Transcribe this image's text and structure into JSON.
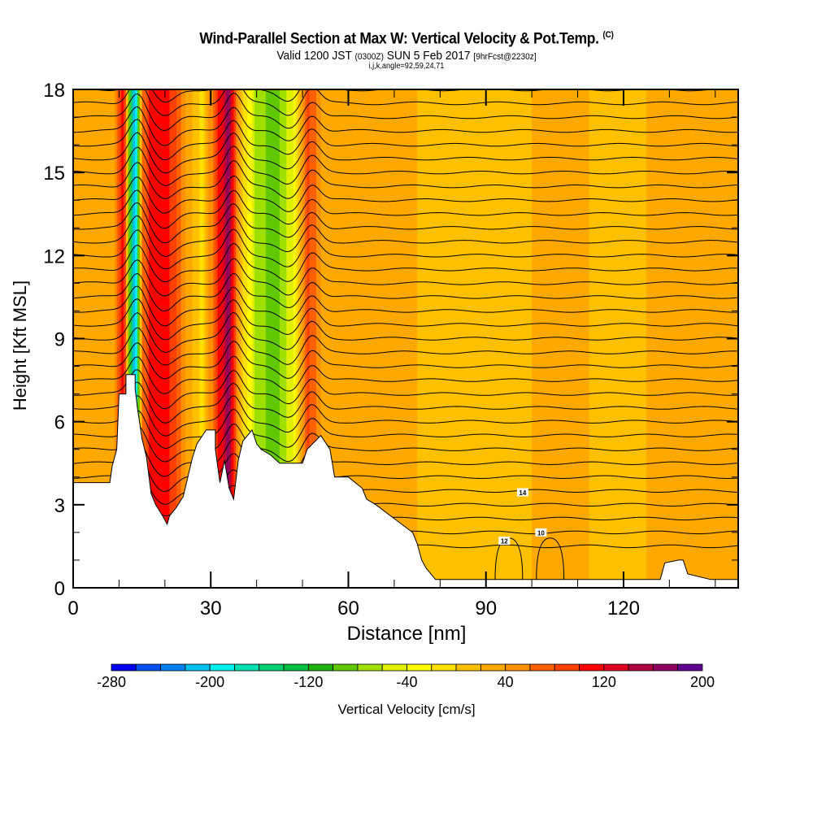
{
  "header": {
    "title": "Wind-Parallel Section at Max W: Vertical Velocity & Pot.Temp.",
    "copyright": "(C)",
    "valid_prefix": "Valid 1200 JST",
    "valid_utc": "(0300Z)",
    "valid_date": "SUN 5 Feb 2017",
    "forecast": "[9hrFcst@2230z]",
    "indices": "i,j,k,angle=92,59,24,71"
  },
  "chart_data": {
    "type": "heatmap",
    "title": "Wind-Parallel Section at Max W: Vertical Velocity & Pot.Temp.",
    "xlabel": "Distance [nm]",
    "ylabel": "Height [Kft MSL]",
    "xlim": [
      0,
      145
    ],
    "ylim": [
      0,
      18
    ],
    "x_ticks": [
      0,
      30,
      60,
      90,
      120
    ],
    "y_ticks": [
      0,
      3,
      6,
      9,
      12,
      15,
      18
    ],
    "x_minor_step": 10,
    "y_minor_step": 1,
    "colorbar": {
      "label": "Vertical Velocity [cm/s]",
      "tick_labels": [
        "-280",
        "-200",
        "-120",
        "-40",
        "40",
        "120",
        "200"
      ],
      "bounds": [
        -280,
        200
      ],
      "step": 20,
      "colors": [
        "#0000f0",
        "#0050f0",
        "#0080f0",
        "#00c0f0",
        "#00f0f0",
        "#00e0b0",
        "#00d070",
        "#00c040",
        "#20b010",
        "#60c800",
        "#a0e000",
        "#e0f000",
        "#ffff00",
        "#ffe000",
        "#ffc000",
        "#ffa800",
        "#ff9000",
        "#ff6000",
        "#ff4000",
        "#ff0000",
        "#e00020",
        "#b00040",
        "#900060",
        "#600090"
      ]
    },
    "velocity_field": [
      {
        "x": 0,
        "value": 30
      },
      {
        "x": 9,
        "value": 40
      },
      {
        "x": 11,
        "value": 130
      },
      {
        "x": 12.5,
        "value": -130
      },
      {
        "x": 13.5,
        "value": -230
      },
      {
        "x": 15,
        "value": 60
      },
      {
        "x": 17,
        "value": 110
      },
      {
        "x": 20,
        "value": 120
      },
      {
        "x": 24,
        "value": 50
      },
      {
        "x": 28,
        "value": -10
      },
      {
        "x": 32,
        "value": 110
      },
      {
        "x": 34,
        "value": 170
      },
      {
        "x": 36,
        "value": 30
      },
      {
        "x": 40,
        "value": -70
      },
      {
        "x": 44,
        "value": -90
      },
      {
        "x": 48,
        "value": -40
      },
      {
        "x": 51,
        "value": 90
      },
      {
        "x": 54,
        "value": 40
      },
      {
        "x": 60,
        "value": 20
      },
      {
        "x": 75,
        "value": 20
      },
      {
        "x": 90,
        "value": 10
      },
      {
        "x": 105,
        "value": 25
      },
      {
        "x": 120,
        "value": 15
      },
      {
        "x": 135,
        "value": 30
      },
      {
        "x": 145,
        "value": 20
      }
    ],
    "terrain": [
      {
        "x": 0,
        "h": 3.8
      },
      {
        "x": 8,
        "h": 3.8
      },
      {
        "x": 8.5,
        "h": 4.4
      },
      {
        "x": 9.5,
        "h": 5.0
      },
      {
        "x": 10,
        "h": 7.0
      },
      {
        "x": 11.5,
        "h": 7.0
      },
      {
        "x": 11.5,
        "h": 7.7
      },
      {
        "x": 13.5,
        "h": 7.7
      },
      {
        "x": 13.5,
        "h": 7.2
      },
      {
        "x": 14,
        "h": 6.5
      },
      {
        "x": 15,
        "h": 5.4
      },
      {
        "x": 16,
        "h": 4.7
      },
      {
        "x": 17,
        "h": 3.4
      },
      {
        "x": 18,
        "h": 3.0
      },
      {
        "x": 19.5,
        "h": 2.6
      },
      {
        "x": 20.5,
        "h": 2.3
      },
      {
        "x": 21,
        "h": 2.6
      },
      {
        "x": 22.5,
        "h": 2.9
      },
      {
        "x": 24,
        "h": 3.3
      },
      {
        "x": 26,
        "h": 4.7
      },
      {
        "x": 27,
        "h": 5.2
      },
      {
        "x": 29,
        "h": 5.7
      },
      {
        "x": 31,
        "h": 5.7
      },
      {
        "x": 31,
        "h": 5.0
      },
      {
        "x": 32,
        "h": 3.8
      },
      {
        "x": 33,
        "h": 4.6
      },
      {
        "x": 34,
        "h": 3.6
      },
      {
        "x": 35,
        "h": 3.2
      },
      {
        "x": 36,
        "h": 4.6
      },
      {
        "x": 37,
        "h": 5.3
      },
      {
        "x": 39,
        "h": 5.7
      },
      {
        "x": 40,
        "h": 5.2
      },
      {
        "x": 41,
        "h": 5.0
      },
      {
        "x": 43,
        "h": 4.8
      },
      {
        "x": 45,
        "h": 4.5
      },
      {
        "x": 50,
        "h": 4.5
      },
      {
        "x": 51,
        "h": 5.0
      },
      {
        "x": 54,
        "h": 5.5
      },
      {
        "x": 56,
        "h": 5.0
      },
      {
        "x": 57,
        "h": 4.0
      },
      {
        "x": 60,
        "h": 4.0
      },
      {
        "x": 63,
        "h": 3.6
      },
      {
        "x": 64,
        "h": 3.2
      },
      {
        "x": 66,
        "h": 3.0
      },
      {
        "x": 70,
        "h": 2.5
      },
      {
        "x": 74,
        "h": 2.0
      },
      {
        "x": 75,
        "h": 1.6
      },
      {
        "x": 76,
        "h": 1.0
      },
      {
        "x": 77,
        "h": 0.7
      },
      {
        "x": 79,
        "h": 0.3
      },
      {
        "x": 80,
        "h": 0.3
      },
      {
        "x": 128,
        "h": 0.3
      },
      {
        "x": 129,
        "h": 0.9
      },
      {
        "x": 132,
        "h": 1.0
      },
      {
        "x": 133,
        "h": 1.0
      },
      {
        "x": 134,
        "h": 0.5
      },
      {
        "x": 139,
        "h": 0.3
      },
      {
        "x": 145,
        "h": 0.3
      }
    ],
    "theta_contours": {
      "label_values_visible": [
        "14",
        "12",
        "10"
      ],
      "count": 34,
      "base_height_kft": 1.5,
      "spacing_kft": 0.5
    }
  }
}
